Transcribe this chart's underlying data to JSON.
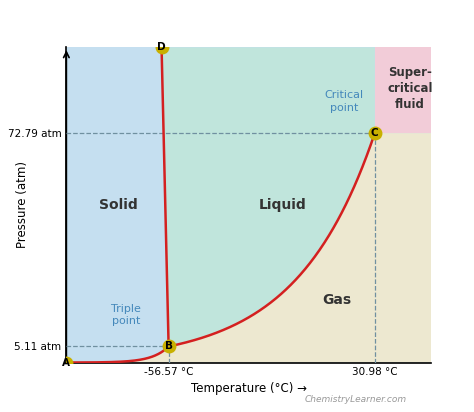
{
  "title_bg": "#1a9fd0",
  "title_fg": "white",
  "xlabel": "Temperature (°C) →",
  "ylabel": "Pressure (atm)",
  "xmin": -100,
  "xmax": 55,
  "ymin": 0,
  "ymax": 100,
  "triple_T": -56.57,
  "triple_P": 5.11,
  "critical_T": 30.98,
  "critical_P": 72.79,
  "solid_color": "#c5dff0",
  "liquid_color": "#c0e5dc",
  "gas_color": "#ede8d0",
  "supercritical_color": "#f2ccd8",
  "watermark": "ChemistryLearner.com",
  "label_solid": "Solid",
  "label_liquid": "Liquid",
  "label_gas": "Gas",
  "label_supercritical": "Super-\ncritical\nfluid",
  "label_triple": "Triple\npoint",
  "label_critical": "Critical\npoint",
  "point_color": "#c8b000",
  "line_color": "#d42020",
  "ref_line_color": "#7090a0",
  "arrow_color": "black",
  "text_color": "#333333",
  "blue_label_color": "#4488bb"
}
